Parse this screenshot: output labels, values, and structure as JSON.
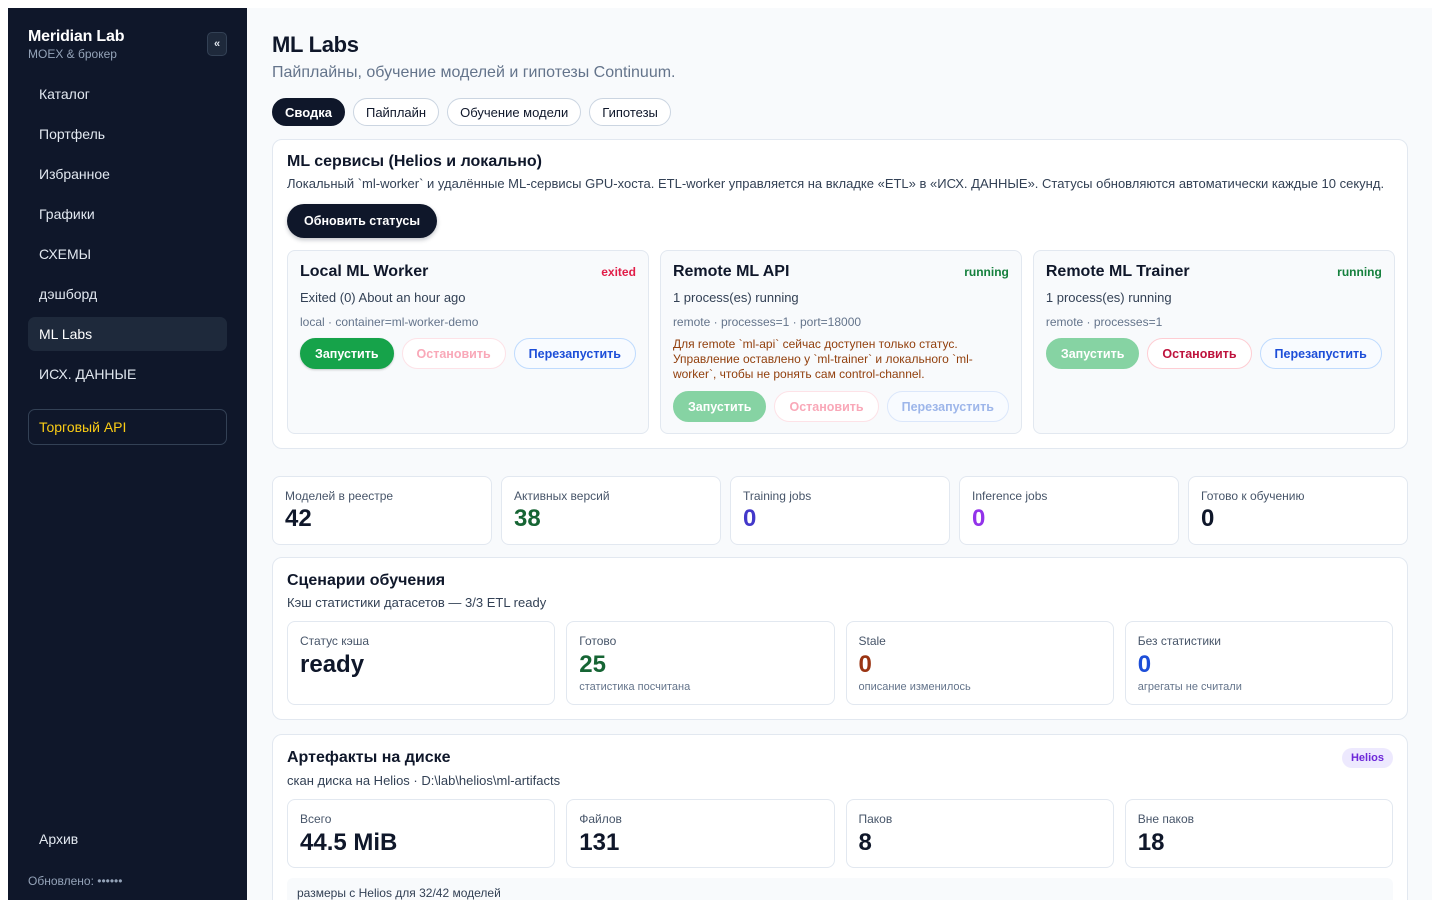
{
  "sidebar": {
    "title": "Meridian Lab",
    "subtitle": "MOEX & брокер",
    "collapse_icon": "«",
    "items": [
      {
        "label": "Каталог"
      },
      {
        "label": "Портфель"
      },
      {
        "label": "Избранное"
      },
      {
        "label": "Графики"
      },
      {
        "label": "СХЕМЫ"
      },
      {
        "label": "дэшборд"
      },
      {
        "label": "ML Labs",
        "active": true
      },
      {
        "label": "ИСХ. ДАННЫЕ"
      }
    ],
    "trade_api": "Торговый API",
    "archive": "Архив",
    "updated": "Обновлено: ••••••"
  },
  "header": {
    "title": "ML Labs",
    "subtitle": "Пайплайны, обучение моделей и гипотезы Continuum."
  },
  "tabs": [
    {
      "label": "Сводка",
      "active": true
    },
    {
      "label": "Пайплайн"
    },
    {
      "label": "Обучение модели"
    },
    {
      "label": "Гипотезы"
    }
  ],
  "services": {
    "title": "ML сервисы (Helios и локально)",
    "description": "Локальный `ml-worker` и удалённые ML-сервисы GPU-хоста. ETL-worker управляется на вкладке «ETL» в «ИСХ. ДАННЫЕ». Статусы обновляются автоматически каждые 10 секунд.",
    "refresh_label": "Обновить статусы",
    "start_label": "Запустить",
    "stop_label": "Остановить",
    "restart_label": "Перезапустить",
    "items": [
      {
        "name": "Local ML Worker",
        "status": "exited",
        "state": "Exited (0) About an hour ago",
        "meta": "local · container=ml-worker-demo",
        "warning": ""
      },
      {
        "name": "Remote ML API",
        "status": "running",
        "state": "1 process(es) running",
        "meta": "remote · processes=1 · port=18000",
        "warning": "Для remote `ml-api` сейчас доступен только статус. Управление оставлено у `ml-trainer` и локального `ml-worker`, чтобы не ронять сам control-channel."
      },
      {
        "name": "Remote ML Trainer",
        "status": "running",
        "state": "1 process(es) running",
        "meta": "remote · processes=1",
        "warning": ""
      }
    ]
  },
  "stats": [
    {
      "label": "Моделей в реестре",
      "value": "42",
      "color": "#0f172a"
    },
    {
      "label": "Активных версий",
      "value": "38",
      "color": "#166534"
    },
    {
      "label": "Training jobs",
      "value": "0",
      "color": "#4338ca"
    },
    {
      "label": "Inference jobs",
      "value": "0",
      "color": "#9333ea"
    },
    {
      "label": "Готово к обучению",
      "value": "0",
      "color": "#0f172a"
    }
  ],
  "training": {
    "title": "Сценарии обучения",
    "subtitle": "Кэш статистики датасетов — 3/3 ETL ready",
    "items": [
      {
        "label": "Статус кэша",
        "value": "ready",
        "note": "",
        "color": "#0f172a"
      },
      {
        "label": "Готово",
        "value": "25",
        "note": "статистика посчитана",
        "color": "#166534"
      },
      {
        "label": "Stale",
        "value": "0",
        "note": "описание изменилось",
        "color": "#9a3412"
      },
      {
        "label": "Без статистики",
        "value": "0",
        "note": "агрегаты не считали",
        "color": "#1d4ed8"
      }
    ]
  },
  "artifacts": {
    "title": "Артефакты на диске",
    "subtitle": "скан диска на Helios · D:\\lab\\helios\\ml-artifacts",
    "badge": "Helios",
    "items": [
      {
        "label": "Всего",
        "value": "44.5 MiB"
      },
      {
        "label": "Файлов",
        "value": "131"
      },
      {
        "label": "Паков",
        "value": "8"
      },
      {
        "label": "Вне паков",
        "value": "18"
      }
    ],
    "footer": "размеры с Helios для 32/42 моделей"
  }
}
